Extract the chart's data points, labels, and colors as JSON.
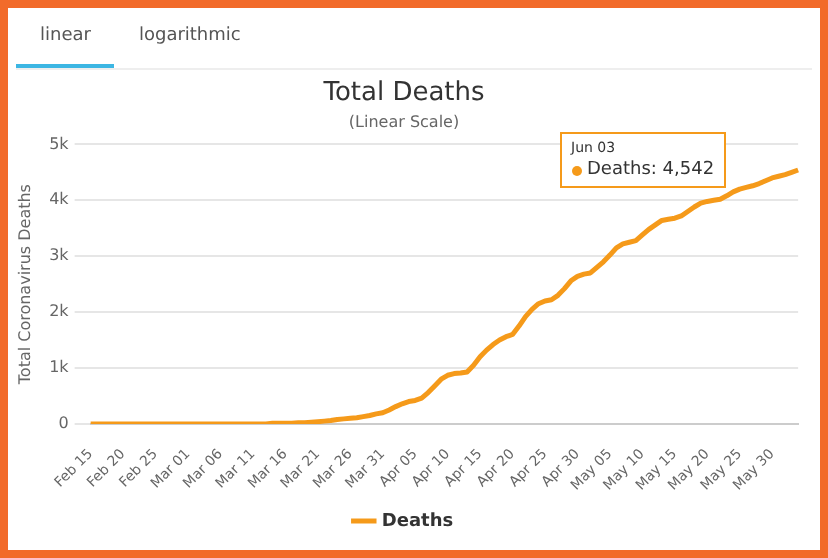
{
  "chart_data": {
    "type": "line",
    "title": "Total Deaths",
    "subtitle": "(Linear Scale)",
    "ylabel": "Total Coronavirus Deaths",
    "categories": [
      "Feb 15",
      null,
      null,
      null,
      null,
      "Feb 20",
      null,
      null,
      null,
      null,
      "Feb 25",
      null,
      null,
      null,
      null,
      "Mar 01",
      null,
      null,
      null,
      null,
      "Mar 06",
      null,
      null,
      null,
      null,
      "Mar 11",
      null,
      null,
      null,
      null,
      "Mar 16",
      null,
      null,
      null,
      null,
      "Mar 21",
      null,
      null,
      null,
      null,
      "Mar 26",
      null,
      null,
      null,
      null,
      "Mar 31",
      null,
      null,
      null,
      null,
      "Apr 05",
      null,
      null,
      null,
      null,
      "Apr 10",
      null,
      null,
      null,
      null,
      "Apr 15",
      null,
      null,
      null,
      null,
      "Apr 20",
      null,
      null,
      null,
      null,
      "Apr 25",
      null,
      null,
      null,
      null,
      "Apr 30",
      null,
      null,
      null,
      null,
      "May 05",
      null,
      null,
      null,
      null,
      "May 10",
      null,
      null,
      null,
      null,
      "May 15",
      null,
      null,
      null,
      null,
      "May 20",
      null,
      null,
      null,
      null,
      "May 25",
      null,
      null,
      null,
      null,
      "May 30",
      null,
      null,
      null,
      null
    ],
    "series": [
      {
        "name": "Deaths",
        "color": "#f59a1a",
        "values": [
          0,
          0,
          0,
          0,
          0,
          0,
          0,
          0,
          0,
          0,
          0,
          0,
          0,
          0,
          0,
          0,
          0,
          0,
          0,
          0,
          0,
          0,
          0,
          0,
          0,
          0,
          0,
          0,
          10,
          10,
          10,
          10,
          20,
          20,
          30,
          40,
          50,
          60,
          80,
          90,
          100,
          110,
          130,
          150,
          180,
          200,
          250,
          310,
          360,
          400,
          420,
          460,
          560,
          680,
          800,
          870,
          900,
          910,
          930,
          1050,
          1200,
          1320,
          1420,
          1500,
          1560,
          1600,
          1750,
          1920,
          2050,
          2150,
          2200,
          2220,
          2300,
          2420,
          2560,
          2640,
          2680,
          2700,
          2800,
          2900,
          3020,
          3150,
          3220,
          3250,
          3280,
          3380,
          3480,
          3560,
          3640,
          3660,
          3680,
          3720,
          3800,
          3880,
          3950,
          3980,
          4000,
          4020,
          4080,
          4150,
          4200,
          4230,
          4260,
          4300,
          4350,
          4400,
          4430,
          4460,
          4500,
          4542
        ]
      }
    ],
    "ylim": [
      0,
      5000
    ],
    "yticks": [
      0,
      {
        "value": 1000,
        "label": "1k"
      },
      {
        "value": 2000,
        "label": "2k"
      },
      {
        "value": 3000,
        "label": "3k"
      },
      {
        "value": 4000,
        "label": "4k"
      },
      {
        "value": 5000,
        "label": "5k"
      }
    ],
    "grid": "y",
    "legend": "bottom",
    "annotations": [
      "linear",
      "logarithmic",
      "Jun 03",
      "Deaths: 4,542"
    ]
  }
}
